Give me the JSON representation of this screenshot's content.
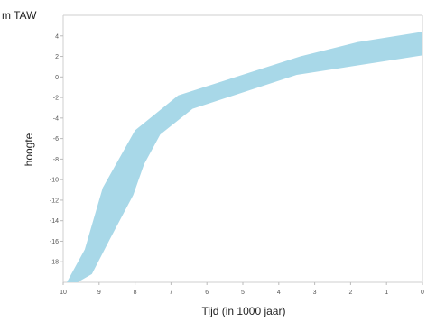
{
  "chart_data": {
    "type": "area",
    "unit_label": "m TAW",
    "xlabel": "Tijd (in 1000 jaar)",
    "ylabel": "hoogte",
    "xlim": [
      10,
      0
    ],
    "ylim": [
      -20,
      6
    ],
    "grid": false,
    "x_ticks": [
      "10",
      "9",
      "8",
      "7",
      "6",
      "5",
      "4",
      "3",
      "2",
      "1",
      "0"
    ],
    "y_ticks": [
      "4",
      "2",
      "0",
      "-2",
      "-4",
      "-6",
      "-8",
      "-10",
      "-12",
      "-14",
      "-16",
      "-18"
    ],
    "x_tick_values": [
      10,
      9,
      8,
      7,
      6,
      5,
      4,
      3,
      2,
      1,
      0
    ],
    "y_tick_values": [
      4,
      2,
      0,
      -2,
      -4,
      -6,
      -8,
      -10,
      -12,
      -14,
      -16,
      -18
    ],
    "band_color": "#a8d8e8",
    "upper_boundary": {
      "x": [
        9.9,
        9.4,
        8.9,
        8.0,
        6.8,
        3.4,
        1.8,
        0.0
      ],
      "y": [
        -20.2,
        -16.8,
        -10.8,
        -5.2,
        -1.8,
        2.0,
        3.4,
        4.4
      ]
    },
    "lower_boundary": {
      "x": [
        9.6,
        9.2,
        8.7,
        8.05,
        7.75,
        7.3,
        6.4,
        3.5,
        0.0
      ],
      "y": [
        -20.2,
        -19.2,
        -15.8,
        -11.5,
        -8.5,
        -5.6,
        -3.1,
        0.2,
        2.1
      ]
    }
  }
}
